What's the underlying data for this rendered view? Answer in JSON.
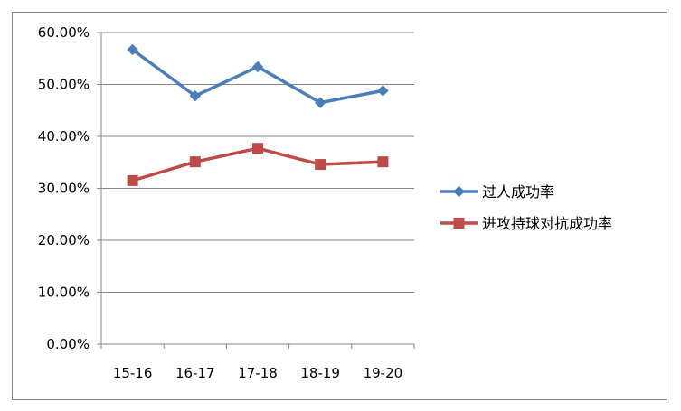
{
  "chart_data": {
    "type": "line",
    "categories": [
      "15-16",
      "16-17",
      "17-18",
      "18-19",
      "19-20"
    ],
    "series": [
      {
        "name": "过人成功率",
        "values": [
          0.567,
          0.478,
          0.534,
          0.465,
          0.488
        ],
        "color": "#4a7ebb",
        "marker": "diamond"
      },
      {
        "name": "进攻持球对抗成功率",
        "values": [
          0.315,
          0.351,
          0.377,
          0.346,
          0.351
        ],
        "color": "#be4b48",
        "marker": "square"
      }
    ],
    "ylim": [
      0,
      0.6
    ],
    "yticks": [
      0,
      0.1,
      0.2,
      0.3,
      0.4,
      0.5,
      0.6
    ],
    "ytick_labels": [
      "0.00%",
      "10.00%",
      "20.00%",
      "30.00%",
      "40.00%",
      "50.00%",
      "60.00%"
    ],
    "grid": true,
    "legend_position": "right",
    "title": "",
    "xlabel": "",
    "ylabel": ""
  }
}
